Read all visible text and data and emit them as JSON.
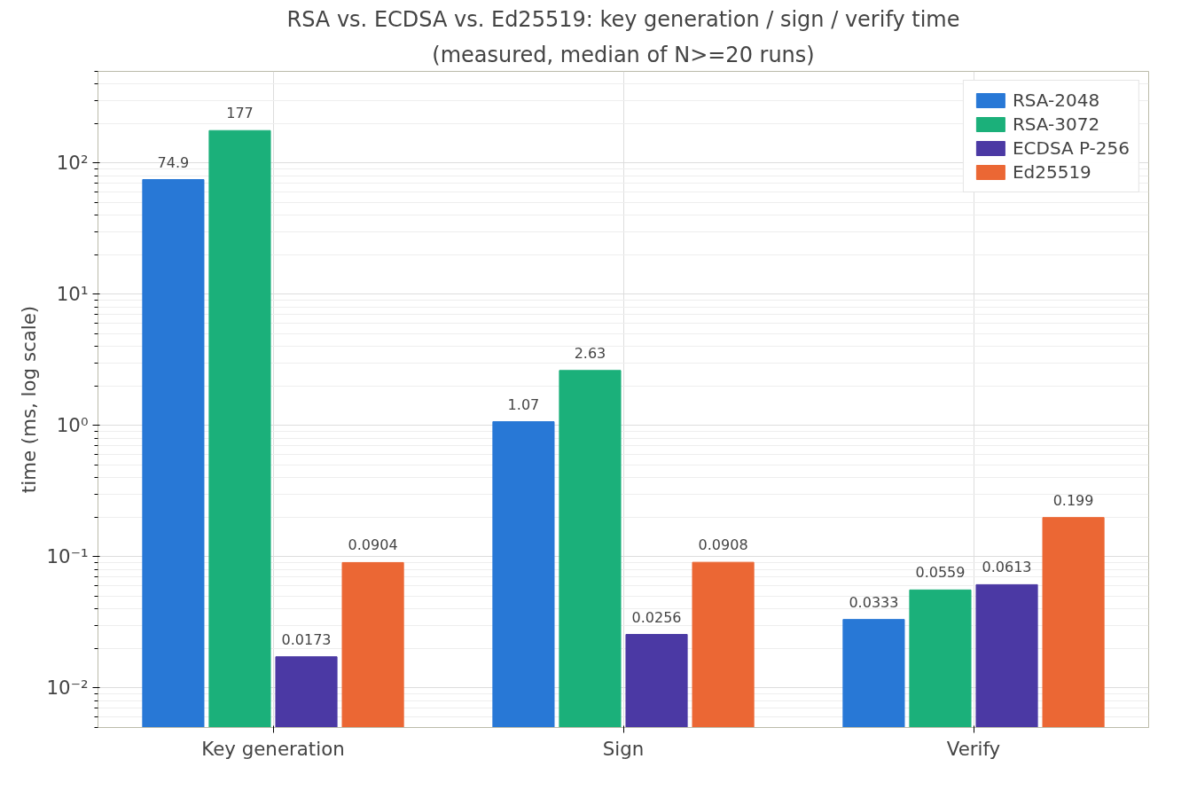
{
  "chart_data": {
    "type": "bar",
    "title": "RSA vs. ECDSA vs. Ed25519: key generation / sign / verify time",
    "subtitle": "(measured, median of N>=20 runs)",
    "ylabel": "time (ms, log scale)",
    "categories": [
      "Key generation",
      "Sign",
      "Verify"
    ],
    "series": [
      {
        "name": "RSA-2048",
        "color": "#2878d6",
        "values": [
          74.9,
          1.07,
          0.0333
        ]
      },
      {
        "name": "RSA-3072",
        "color": "#1bb07a",
        "values": [
          177,
          2.63,
          0.0559
        ]
      },
      {
        "name": "ECDSA P-256",
        "color": "#4b39a4",
        "values": [
          0.0173,
          0.0256,
          0.0613
        ]
      },
      {
        "name": "Ed25519",
        "color": "#eb6734",
        "values": [
          0.0904,
          0.0908,
          0.199
        ]
      }
    ],
    "log": true,
    "ylim": [
      0.005,
      500
    ],
    "yticks": [
      {
        "value": 0.01,
        "label": "10⁻²"
      },
      {
        "value": 0.1,
        "label": "10⁻¹"
      },
      {
        "value": 1,
        "label": "10⁰"
      },
      {
        "value": 10,
        "label": "10¹"
      },
      {
        "value": 100,
        "label": "10²"
      }
    ],
    "grid": true,
    "legend": "top right",
    "data_labels": true
  }
}
